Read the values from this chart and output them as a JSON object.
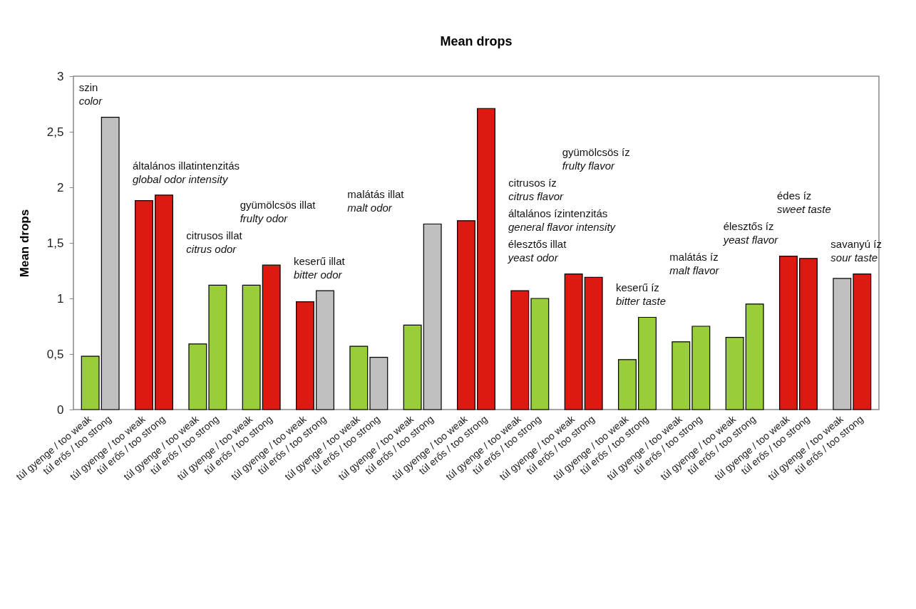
{
  "chart_data": {
    "type": "bar",
    "title": "Mean drops",
    "ylabel": "Mean drops",
    "categories": [
      "túl gyenge / too weak",
      "túl erős / too strong",
      "túl gyenge / too weak",
      "túl erős / too strong",
      "túl gyenge / too weak",
      "túl erős / too strong",
      "túl gyenge / too weak",
      "túl erős / too strong",
      "túl gyenge / too weak",
      "túl erős / too strong",
      "túl gyenge / too weak",
      "túl erős / too strong",
      "túl gyenge / too weak",
      "túl erős / too strong",
      "túl gyenge / too weak",
      "túl erős / too strong",
      "túl gyenge / too weak",
      "túl erős / too strong",
      "túl gyenge / too weak",
      "túl erős / too strong",
      "túl gyenge / too weak",
      "túl erős / too strong",
      "túl gyenge / too weak",
      "túl erős / too strong",
      "túl gyenge / too weak",
      "túl erős / too strong",
      "túl gyenge / too weak",
      "túl erős / too strong",
      "túl gyenge / too weak",
      "túl erős / too strong"
    ],
    "values": [
      0.48,
      2.63,
      1.88,
      1.93,
      0.59,
      1.12,
      1.12,
      1.3,
      0.97,
      1.07,
      0.57,
      0.47,
      0.76,
      1.67,
      1.7,
      2.71,
      1.07,
      1.0,
      1.22,
      1.19,
      0.45,
      0.83,
      0.61,
      0.75,
      0.65,
      0.95,
      1.38,
      1.36,
      1.18,
      1.22
    ],
    "colors": [
      "#9acd3a",
      "#c0c0c0",
      "#dd1a12",
      "#dd1a12",
      "#9acd3a",
      "#9acd3a",
      "#9acd3a",
      "#dd1a12",
      "#dd1a12",
      "#c0c0c0",
      "#9acd3a",
      "#c0c0c0",
      "#9acd3a",
      "#c0c0c0",
      "#dd1a12",
      "#dd1a12",
      "#dd1a12",
      "#9acd3a",
      "#dd1a12",
      "#dd1a12",
      "#9acd3a",
      "#9acd3a",
      "#9acd3a",
      "#9acd3a",
      "#9acd3a",
      "#9acd3a",
      "#dd1a12",
      "#dd1a12",
      "#c0c0c0",
      "#dd1a12"
    ],
    "ylim": [
      0,
      3
    ],
    "yticks": [
      0,
      {
        "value": 0.5,
        "label": "0,5"
      },
      1,
      {
        "value": 1.5,
        "label": "1,5"
      },
      2,
      {
        "value": 2.5,
        "label": "2,5"
      },
      3
    ],
    "grid": false,
    "annotations": [
      "szin\ncolor",
      "általános illatintenzitás\nglobal odor intensity",
      "citrusos illat\ncitrus odor",
      "gyümölcsös illat\nfrulty odor",
      "keserű illat\nbitter odor",
      "malátás illat\nmalt odor",
      "élesztős illat\nyeast odor",
      "általános ízintenzitás\ngeneral flavor intensity",
      "citrusos íz\ncitrus flavor",
      "gyümölcsös íz\nfrulty flavor",
      "keserű íz\nbitter taste",
      "malátás íz\nmalt flavor",
      "élesztős íz\nyeast flavor",
      "édes íz\nsweet taste",
      "savanyú íz\nsour taste"
    ]
  }
}
